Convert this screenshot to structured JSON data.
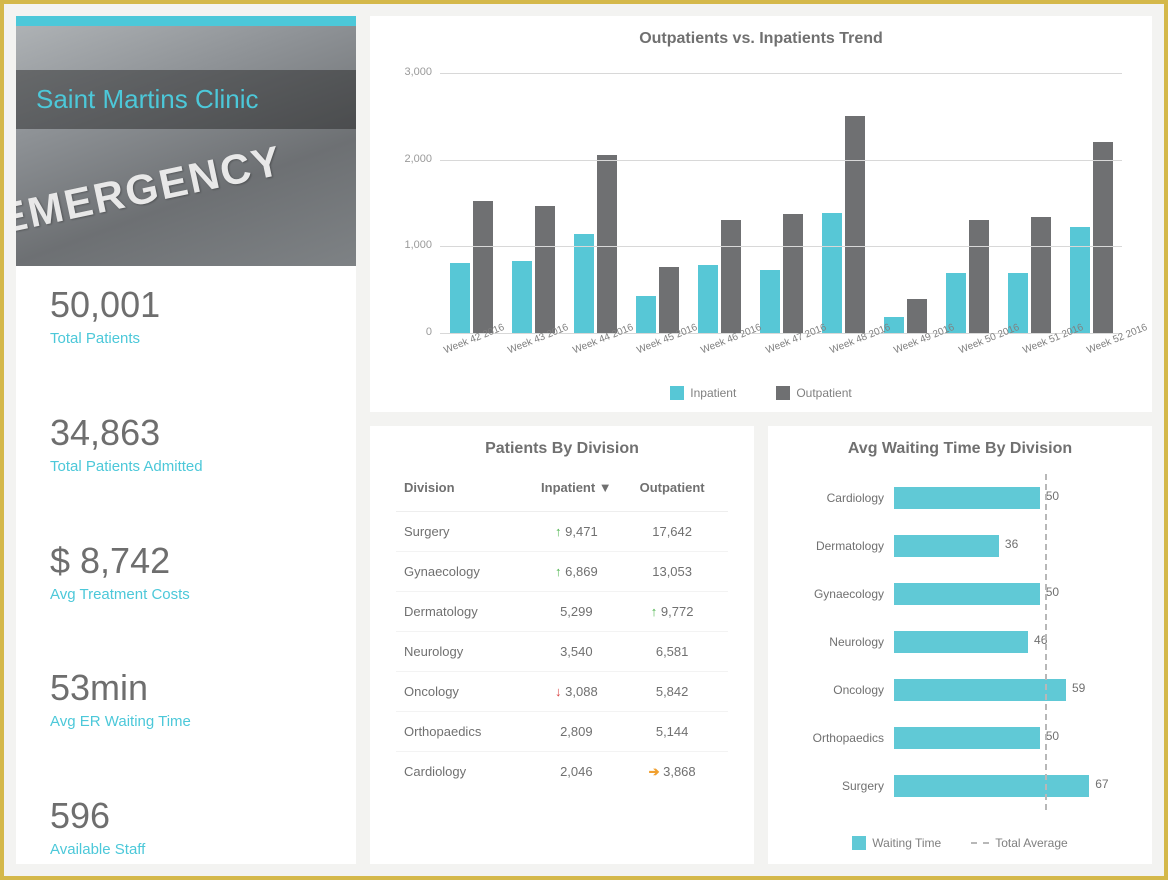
{
  "colors": {
    "accent": "#4cc8d9",
    "bar_inpatient": "#57c7d6",
    "bar_outpatient": "#6f7072",
    "hbar": "#60c9d6",
    "avg_line": "#b8b8b8",
    "grid": "#d8d8d8",
    "text_muted": "#808080",
    "text_value": "#6e6e6e",
    "up": "#4fb54f",
    "down": "#d94040",
    "right": "#f0a030"
  },
  "hero": {
    "clinic_name": "Saint Martins Clinic",
    "sign_text": "EMERGENCY"
  },
  "kpis": [
    {
      "value": "50,001",
      "label": "Total Patients"
    },
    {
      "value": "34,863",
      "label": "Total Patients Admitted"
    },
    {
      "value": "$ 8,742",
      "label": "Avg Treatment Costs"
    },
    {
      "value": "53min",
      "label": "Avg ER Waiting Time"
    },
    {
      "value": "596",
      "label": "Available Staff"
    }
  ],
  "trend_chart": {
    "title": "Outpatients vs. Inpatients Trend",
    "y_ticks": [
      0,
      1000,
      2000,
      3000
    ],
    "y_tick_labels": [
      "0",
      "1,000",
      "2,000",
      "3,000"
    ],
    "y_max": 3000,
    "categories": [
      "Week 42 2016",
      "Week 43 2016",
      "Week 44 2016",
      "Week 45 2016",
      "Week 46 2016",
      "Week 47 2016",
      "Week 48 2016",
      "Week 49 2016",
      "Week 50 2016",
      "Week 51 2016",
      "Week 52 2016"
    ],
    "series": [
      {
        "name": "Inpatient",
        "color": "#57c7d6",
        "values": [
          820,
          840,
          1150,
          440,
          800,
          740,
          1400,
          200,
          700,
          700,
          1230
        ]
      },
      {
        "name": "Outpatient",
        "color": "#6f7072",
        "values": [
          1530,
          1480,
          2060,
          770,
          1310,
          1380,
          2520,
          400,
          1310,
          1350,
          2220
        ]
      }
    ],
    "legend": [
      "Inpatient",
      "Outpatient"
    ]
  },
  "division_table": {
    "title": "Patients By Division",
    "columns": [
      "Division",
      "Inpatient ▼",
      "Outpatient"
    ],
    "rows": [
      {
        "division": "Surgery",
        "inpatient": "9,471",
        "in_trend": "up",
        "outpatient": "17,642",
        "out_trend": null
      },
      {
        "division": "Gynaecology",
        "inpatient": "6,869",
        "in_trend": "up",
        "outpatient": "13,053",
        "out_trend": null
      },
      {
        "division": "Dermatology",
        "inpatient": "5,299",
        "in_trend": null,
        "outpatient": "9,772",
        "out_trend": "up"
      },
      {
        "division": "Neurology",
        "inpatient": "3,540",
        "in_trend": null,
        "outpatient": "6,581",
        "out_trend": null
      },
      {
        "division": "Oncology",
        "inpatient": "3,088",
        "in_trend": "down",
        "outpatient": "5,842",
        "out_trend": null
      },
      {
        "division": "Orthopaedics",
        "inpatient": "2,809",
        "in_trend": null,
        "outpatient": "5,144",
        "out_trend": null
      },
      {
        "division": "Cardiology",
        "inpatient": "2,046",
        "in_trend": null,
        "outpatient": "3,868",
        "out_trend": "right"
      }
    ]
  },
  "wait_chart": {
    "title": "Avg Waiting Time By Division",
    "x_max": 70,
    "avg_line_value": 51,
    "bar_color": "#60c9d6",
    "rows": [
      {
        "label": "Cardiology",
        "value": 50
      },
      {
        "label": "Dermatology",
        "value": 36
      },
      {
        "label": "Gynaecology",
        "value": 50
      },
      {
        "label": "Neurology",
        "value": 46
      },
      {
        "label": "Oncology",
        "value": 59
      },
      {
        "label": "Orthopaedics",
        "value": 50
      },
      {
        "label": "Surgery",
        "value": 67
      }
    ],
    "legend": [
      "Waiting Time",
      "Total Average"
    ]
  }
}
